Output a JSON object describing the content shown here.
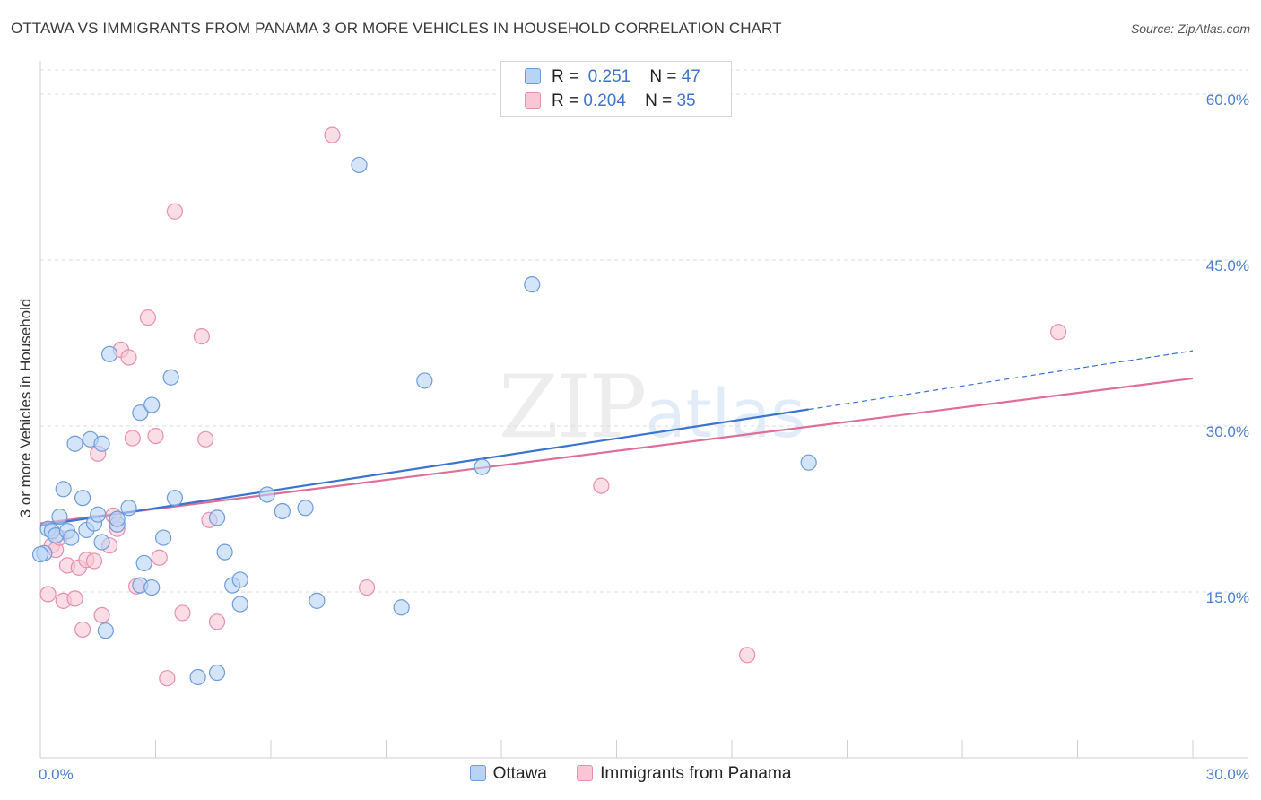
{
  "title": "OTTAWA VS IMMIGRANTS FROM PANAMA 3 OR MORE VEHICLES IN HOUSEHOLD CORRELATION CHART",
  "source": "Source: ZipAtlas.com",
  "watermark": {
    "zip": "ZIP",
    "atlas": "atlas"
  },
  "legend": {
    "rows": [
      {
        "r_label": "R =",
        "r_value": "0.251",
        "n_label": "N =",
        "n_value": "47"
      },
      {
        "r_label": "R =",
        "r_value": "0.204",
        "n_label": "N =",
        "n_value": "35"
      }
    ]
  },
  "bottom_legend": [
    "Ottawa",
    "Immigrants from Panama"
  ],
  "colors": {
    "ottawa_fill": "#b9d3f5",
    "ottawa_stroke": "#6d9bdc",
    "ottawa_line": "#3a74d1",
    "panama_fill": "#f9c6d6",
    "panama_stroke": "#e88fae",
    "panama_line": "#e06e98",
    "grid": "#dddddd",
    "tick_text": "#4a7fd0"
  },
  "chart_data": {
    "type": "scatter",
    "title": "OTTAWA VS IMMIGRANTS FROM PANAMA 3 OR MORE VEHICLES IN HOUSEHOLD CORRELATION CHART",
    "xlabel": "",
    "ylabel": "3 or more Vehicles in Household",
    "xlim": [
      0,
      30
    ],
    "ylim": [
      0,
      63
    ],
    "x_tick_labels": [
      {
        "value": 0,
        "label": "0.0%"
      },
      {
        "value": 30,
        "label": "30.0%"
      }
    ],
    "x_minor_ticks": [
      3,
      6,
      9,
      12,
      15,
      18,
      21,
      24,
      27
    ],
    "y_ticks": [
      {
        "value": 15,
        "label": "15.0%"
      },
      {
        "value": 30,
        "label": "30.0%"
      },
      {
        "value": 45,
        "label": "45.0%"
      },
      {
        "value": 60,
        "label": "60.0%"
      }
    ],
    "series": [
      {
        "name": "Ottawa",
        "R": 0.251,
        "N": 47,
        "trend": {
          "x0": 0,
          "y0": 21.0,
          "x1": 20.0,
          "y1": 31.5,
          "dash_to_x": 30,
          "dash_to_y": 36.8
        },
        "points": [
          [
            0.1,
            18.5
          ],
          [
            0.2,
            20.7
          ],
          [
            0.3,
            20.5
          ],
          [
            0.4,
            20.1
          ],
          [
            0.5,
            21.8
          ],
          [
            0.6,
            24.3
          ],
          [
            0.7,
            20.5
          ],
          [
            0.8,
            19.9
          ],
          [
            0.9,
            28.4
          ],
          [
            1.1,
            23.5
          ],
          [
            1.2,
            20.6
          ],
          [
            1.3,
            28.8
          ],
          [
            1.4,
            21.2
          ],
          [
            1.5,
            22.0
          ],
          [
            1.6,
            28.4
          ],
          [
            1.6,
            19.5
          ],
          [
            1.7,
            11.5
          ],
          [
            1.8,
            36.5
          ],
          [
            2.0,
            21.1
          ],
          [
            2.0,
            21.6
          ],
          [
            2.3,
            22.6
          ],
          [
            2.6,
            31.2
          ],
          [
            2.7,
            17.6
          ],
          [
            2.6,
            15.6
          ],
          [
            2.9,
            15.4
          ],
          [
            2.9,
            31.9
          ],
          [
            3.2,
            19.9
          ],
          [
            3.4,
            34.4
          ],
          [
            3.5,
            23.5
          ],
          [
            4.1,
            7.3
          ],
          [
            4.6,
            21.7
          ],
          [
            4.6,
            7.7
          ],
          [
            4.8,
            18.6
          ],
          [
            5.0,
            15.6
          ],
          [
            5.2,
            13.9
          ],
          [
            5.2,
            16.1
          ],
          [
            5.9,
            23.8
          ],
          [
            6.3,
            22.3
          ],
          [
            6.9,
            22.6
          ],
          [
            7.2,
            14.2
          ],
          [
            8.3,
            53.6
          ],
          [
            9.4,
            13.6
          ],
          [
            10.0,
            34.1
          ],
          [
            11.5,
            26.3
          ],
          [
            12.8,
            42.8
          ],
          [
            20.0,
            26.7
          ],
          [
            0.0,
            18.4
          ]
        ]
      },
      {
        "name": "Immigrants from Panama",
        "R": 0.204,
        "N": 35,
        "trend": {
          "x0": 0,
          "y0": 21.2,
          "x1": 30,
          "y1": 34.3
        },
        "points": [
          [
            0.2,
            14.8
          ],
          [
            0.3,
            19.2
          ],
          [
            0.4,
            18.8
          ],
          [
            0.5,
            19.9
          ],
          [
            0.6,
            14.2
          ],
          [
            0.7,
            17.4
          ],
          [
            0.9,
            14.4
          ],
          [
            1.0,
            17.2
          ],
          [
            1.1,
            11.6
          ],
          [
            1.2,
            17.9
          ],
          [
            1.4,
            17.8
          ],
          [
            1.5,
            27.5
          ],
          [
            1.6,
            12.9
          ],
          [
            1.8,
            19.2
          ],
          [
            1.9,
            21.9
          ],
          [
            2.0,
            20.7
          ],
          [
            2.1,
            36.9
          ],
          [
            2.3,
            36.2
          ],
          [
            2.4,
            28.9
          ],
          [
            2.5,
            15.5
          ],
          [
            2.8,
            39.8
          ],
          [
            3.0,
            29.1
          ],
          [
            3.1,
            18.1
          ],
          [
            3.3,
            7.2
          ],
          [
            3.5,
            49.4
          ],
          [
            3.7,
            13.1
          ],
          [
            4.2,
            38.1
          ],
          [
            4.3,
            28.8
          ],
          [
            4.4,
            21.5
          ],
          [
            4.6,
            12.3
          ],
          [
            7.6,
            56.3
          ],
          [
            8.5,
            15.4
          ],
          [
            14.6,
            24.6
          ],
          [
            18.4,
            9.3
          ],
          [
            26.5,
            38.5
          ]
        ]
      }
    ]
  }
}
